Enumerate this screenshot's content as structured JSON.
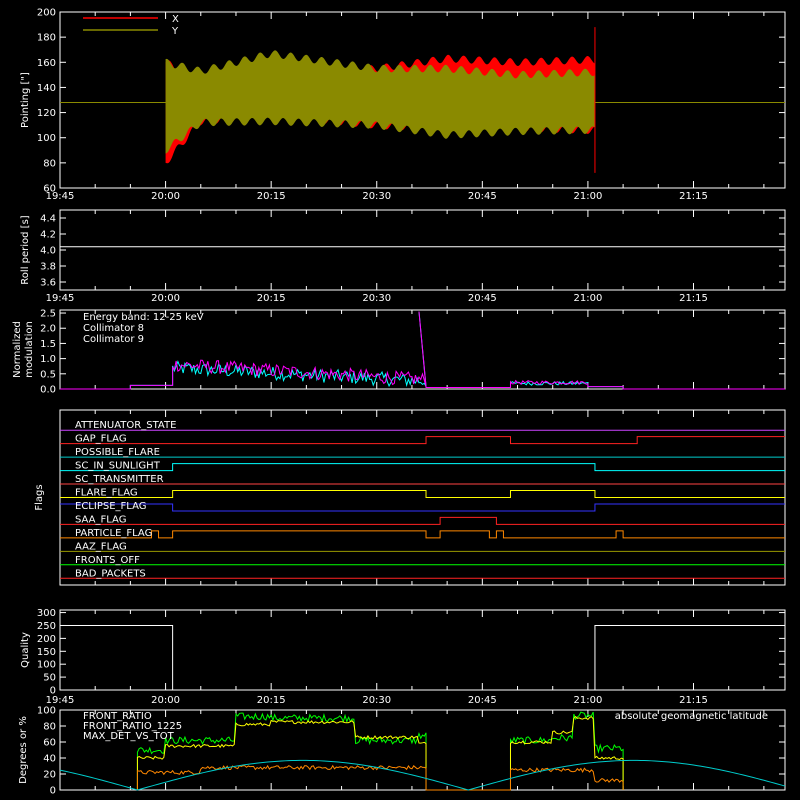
{
  "time_ticks": [
    "19:45",
    "20:00",
    "20:15",
    "20:30",
    "20:45",
    "21:00",
    "21:15"
  ],
  "chart_data": [
    {
      "id": "pointing",
      "type": "area",
      "ylabel": "Pointing [\"]",
      "ylim": [
        60,
        200
      ],
      "yticks": [
        "60",
        "80",
        "100",
        "120",
        "140",
        "160",
        "180",
        "200"
      ],
      "series": [
        {
          "name": "X",
          "color": "#ff0000",
          "baseline": 128,
          "start": "20:00",
          "end": "21:01",
          "upper": [
            [
              0,
              160
            ],
            [
              5,
              145
            ],
            [
              15,
              150
            ],
            [
              30,
              155
            ],
            [
              40,
              163
            ],
            [
              50,
              160
            ],
            [
              60,
              162
            ]
          ],
          "lower": [
            [
              0,
              80
            ],
            [
              5,
              113
            ],
            [
              15,
              118
            ],
            [
              30,
              110
            ],
            [
              40,
              107
            ],
            [
              50,
              108
            ],
            [
              60,
              106
            ]
          ]
        },
        {
          "name": "Y",
          "color": "#8a8a00",
          "baseline": 128,
          "start": "20:00",
          "end": "21:01",
          "upper": [
            [
              0,
              160
            ],
            [
              5,
              153
            ],
            [
              15,
              167
            ],
            [
              30,
              155
            ],
            [
              40,
              155
            ],
            [
              50,
              150
            ],
            [
              60,
              152
            ]
          ],
          "lower": [
            [
              0,
              90
            ],
            [
              5,
              112
            ],
            [
              15,
              113
            ],
            [
              30,
              110
            ],
            [
              40,
              102
            ],
            [
              50,
              105
            ],
            [
              60,
              106
            ]
          ]
        }
      ]
    },
    {
      "id": "roll",
      "type": "line",
      "ylabel": "Roll period [s]",
      "ylim": [
        3.5,
        4.5
      ],
      "yticks": [
        "3.6",
        "3.8",
        "4.0",
        "4.2",
        "4.4"
      ],
      "series": [
        {
          "name": "roll",
          "color": "#ffffff",
          "value": 4.04
        }
      ]
    },
    {
      "id": "modulation",
      "type": "line",
      "ylabel": "Normalized modulation",
      "ylim": [
        0,
        2.6
      ],
      "yticks": [
        "0.0",
        "0.5",
        "1.0",
        "1.5",
        "2.0",
        "2.5"
      ],
      "legend": [
        "Energy band: 12-25 keV",
        "Collimator 8",
        "Collimator 9"
      ],
      "series": [
        {
          "name": "Collimator 8",
          "color": "#00ffff"
        },
        {
          "name": "Collimator 9",
          "color": "#ff00ff"
        }
      ]
    },
    {
      "id": "flags",
      "type": "line",
      "ylabel": "Flags",
      "flags": [
        {
          "name": "ATTENUATOR_STATE",
          "color": "#cc44ff"
        },
        {
          "name": "GAP_FLAG",
          "color": "#ff2222"
        },
        {
          "name": "POSSIBLE_FLARE",
          "color": "#00cccc"
        },
        {
          "name": "SC_IN_SUNLIGHT",
          "color": "#00ffff"
        },
        {
          "name": "SC_TRANSMITTER",
          "color": "#ff4444"
        },
        {
          "name": "FLARE_FLAG",
          "color": "#ffff00"
        },
        {
          "name": "ECLIPSE_FLAG",
          "color": "#3333ff"
        },
        {
          "name": "SAA_FLAG",
          "color": "#ff2222"
        },
        {
          "name": "PARTICLE_FLAG",
          "color": "#ff8800"
        },
        {
          "name": "AAZ_FLAG",
          "color": "#999900"
        },
        {
          "name": "FRONTS_OFF",
          "color": "#00ff00"
        },
        {
          "name": "BAD_PACKETS",
          "color": "#ff2222"
        }
      ]
    },
    {
      "id": "quality",
      "type": "line",
      "ylabel": "Quality",
      "ylim": [
        0,
        310
      ],
      "yticks": [
        "0",
        "50",
        "100",
        "150",
        "200",
        "250",
        "300"
      ],
      "series": [
        {
          "name": "quality",
          "color": "#ffffff"
        }
      ]
    },
    {
      "id": "ratios",
      "type": "line",
      "ylabel": "Degrees or %",
      "ylim": [
        0,
        100
      ],
      "yticks": [
        "0",
        "20",
        "40",
        "60",
        "80",
        "100"
      ],
      "series": [
        {
          "name": "FRONT_RATIO",
          "color": "#ffff00"
        },
        {
          "name": "FRONT_RATIO_1225",
          "color": "#00ff00"
        },
        {
          "name": "MAX_DET_VS_TOT",
          "color": "#ff8800"
        },
        {
          "name": "absolute geomagnetic latitude",
          "color": "#00cccc"
        }
      ]
    }
  ]
}
